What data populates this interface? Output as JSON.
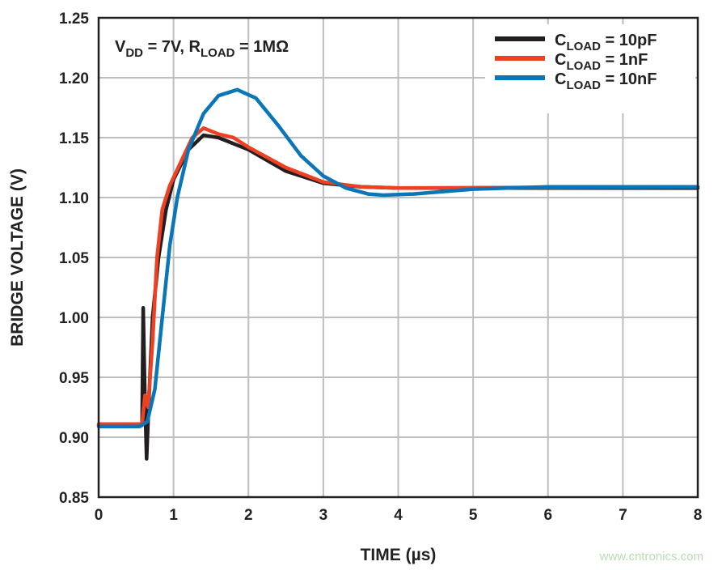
{
  "chart_data": {
    "type": "line",
    "xlabel": "TIME (µs)",
    "ylabel": "BRIDGE VOLTAGE (V)",
    "xlim": [
      0,
      8
    ],
    "ylim": [
      0.85,
      1.25
    ],
    "xticks": [
      "0",
      "1",
      "2",
      "3",
      "4",
      "5",
      "6",
      "7",
      "8"
    ],
    "yticks": [
      "0.85",
      "0.90",
      "0.95",
      "1.00",
      "1.05",
      "1.10",
      "1.15",
      "1.20",
      "1.25"
    ],
    "grid": true,
    "legend_position": "top-right",
    "annotation": {
      "main": "V",
      "sub1": "DD",
      "mid": " = 7V, R",
      "sub2": "LOAD",
      "end": " = 1MΩ"
    },
    "series": [
      {
        "name": "C_LOAD = 10pF",
        "label_main": "C",
        "label_sub": "LOAD",
        "label_end": " = 10pF",
        "color": "#231f20",
        "x": [
          0,
          0.58,
          0.595,
          0.615,
          0.64,
          0.67,
          0.72,
          0.8,
          0.9,
          1.0,
          1.2,
          1.4,
          1.6,
          2.0,
          2.5,
          3.0,
          3.5,
          4.0,
          8.0
        ],
        "y": [
          0.91,
          0.91,
          1.008,
          0.94,
          0.882,
          0.93,
          1.0,
          1.05,
          1.09,
          1.115,
          1.14,
          1.152,
          1.15,
          1.14,
          1.122,
          1.112,
          1.109,
          1.108,
          1.108
        ]
      },
      {
        "name": "C_LOAD = 1nF",
        "label_main": "C",
        "label_sub": "LOAD",
        "label_end": " = 1nF",
        "color": "#ee4023",
        "x": [
          0,
          0.58,
          0.62,
          0.66,
          0.72,
          0.78,
          0.85,
          0.95,
          1.1,
          1.25,
          1.4,
          1.6,
          1.8,
          2.0,
          2.5,
          3.0,
          3.5,
          4.0,
          8.0
        ],
        "y": [
          0.911,
          0.911,
          0.935,
          0.925,
          0.98,
          1.05,
          1.09,
          1.11,
          1.13,
          1.15,
          1.158,
          1.153,
          1.15,
          1.142,
          1.125,
          1.113,
          1.109,
          1.108,
          1.109
        ]
      },
      {
        "name": "C_LOAD = 10nF",
        "label_main": "C",
        "label_sub": "LOAD",
        "label_end": " = 10nF",
        "color": "#0a76b7",
        "x": [
          0,
          0.55,
          0.65,
          0.75,
          0.85,
          0.95,
          1.05,
          1.2,
          1.4,
          1.6,
          1.85,
          2.1,
          2.4,
          2.7,
          3.0,
          3.3,
          3.6,
          3.8,
          4.2,
          5.0,
          6.0,
          8.0
        ],
        "y": [
          0.909,
          0.909,
          0.913,
          0.94,
          1.0,
          1.06,
          1.1,
          1.14,
          1.17,
          1.185,
          1.19,
          1.183,
          1.16,
          1.135,
          1.118,
          1.108,
          1.103,
          1.102,
          1.103,
          1.107,
          1.109,
          1.109
        ]
      }
    ]
  },
  "watermark": "www.cntronics.com"
}
